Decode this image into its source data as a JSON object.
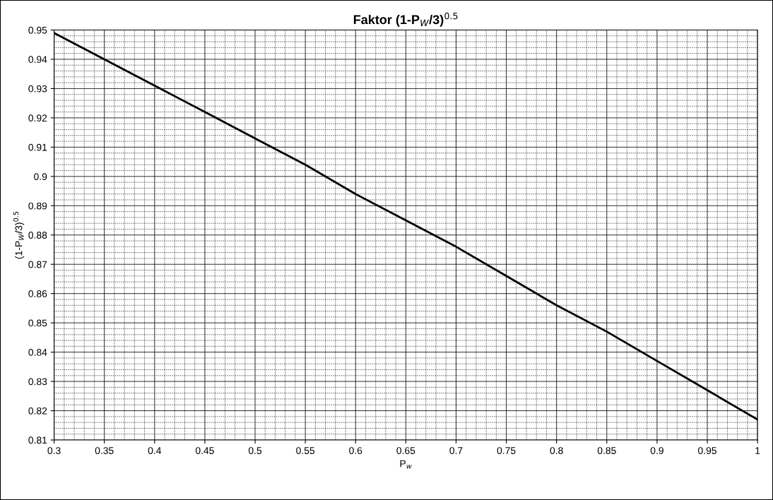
{
  "chart_data": {
    "type": "line",
    "title": "Faktor (1-P$_{W}$/3)$^{0.5}$",
    "xlabel": "P$_{w}$",
    "ylabel": "(1-P$_{W}$/3)$^{0.5}$",
    "x": [
      0.3,
      0.35,
      0.4,
      0.45,
      0.5,
      0.55,
      0.6,
      0.65,
      0.7,
      0.75,
      0.8,
      0.85,
      0.9,
      0.95,
      1
    ],
    "series": [
      {
        "color": "#000000",
        "values": [
          0.949,
          0.94,
          0.931,
          0.922,
          0.913,
          0.904,
          0.894,
          0.885,
          0.876,
          0.866,
          0.856,
          0.847,
          0.837,
          0.827,
          0.817
        ]
      }
    ],
    "xlim": [
      0.3,
      1
    ],
    "ylim": [
      0.81,
      0.95
    ],
    "xticks": [
      0.3,
      0.35,
      0.4,
      0.45,
      0.5,
      0.55,
      0.6,
      0.65,
      0.7,
      0.75,
      0.8,
      0.85,
      0.9,
      0.95,
      1
    ],
    "yticks": [
      0.81,
      0.82,
      0.83,
      0.84,
      0.85,
      0.86,
      0.87,
      0.88,
      0.89,
      0.9,
      0.91,
      0.92,
      0.93,
      0.94,
      0.95
    ],
    "grid": true,
    "marker": "none",
    "line_style": "solid",
    "legend": false
  }
}
